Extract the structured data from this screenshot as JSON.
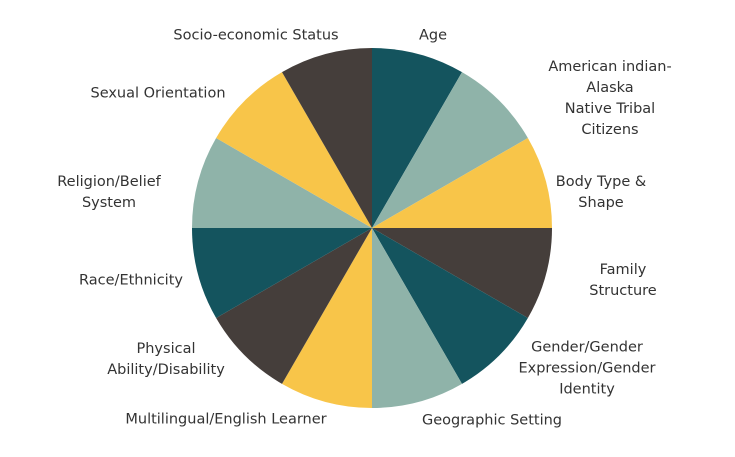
{
  "chart_data": {
    "type": "pie",
    "categories": [
      "Age",
      "American indian-Alaska\nNative Tribal Citizens",
      "Body Type &\nShape",
      "Family Structure",
      "Gender/Gender\nExpression/Gender\nIdentity",
      "Geographic Setting",
      "Multilingual/English  Learner",
      "Physical\nAbility/Disability",
      "Race/Ethnicity",
      "Religion/Belief\nSystem",
      "Sexual Orientation",
      "Socio-economic Status"
    ],
    "values": [
      1,
      1,
      1,
      1,
      1,
      1,
      1,
      1,
      1,
      1,
      1,
      1
    ],
    "colors": [
      "#14545e",
      "#8fb3a9",
      "#f8c549",
      "#453e3b",
      "#14545e",
      "#8fb3a9",
      "#f8c549",
      "#453e3b",
      "#14545e",
      "#8fb3a9",
      "#f8c549",
      "#453e3b"
    ]
  }
}
